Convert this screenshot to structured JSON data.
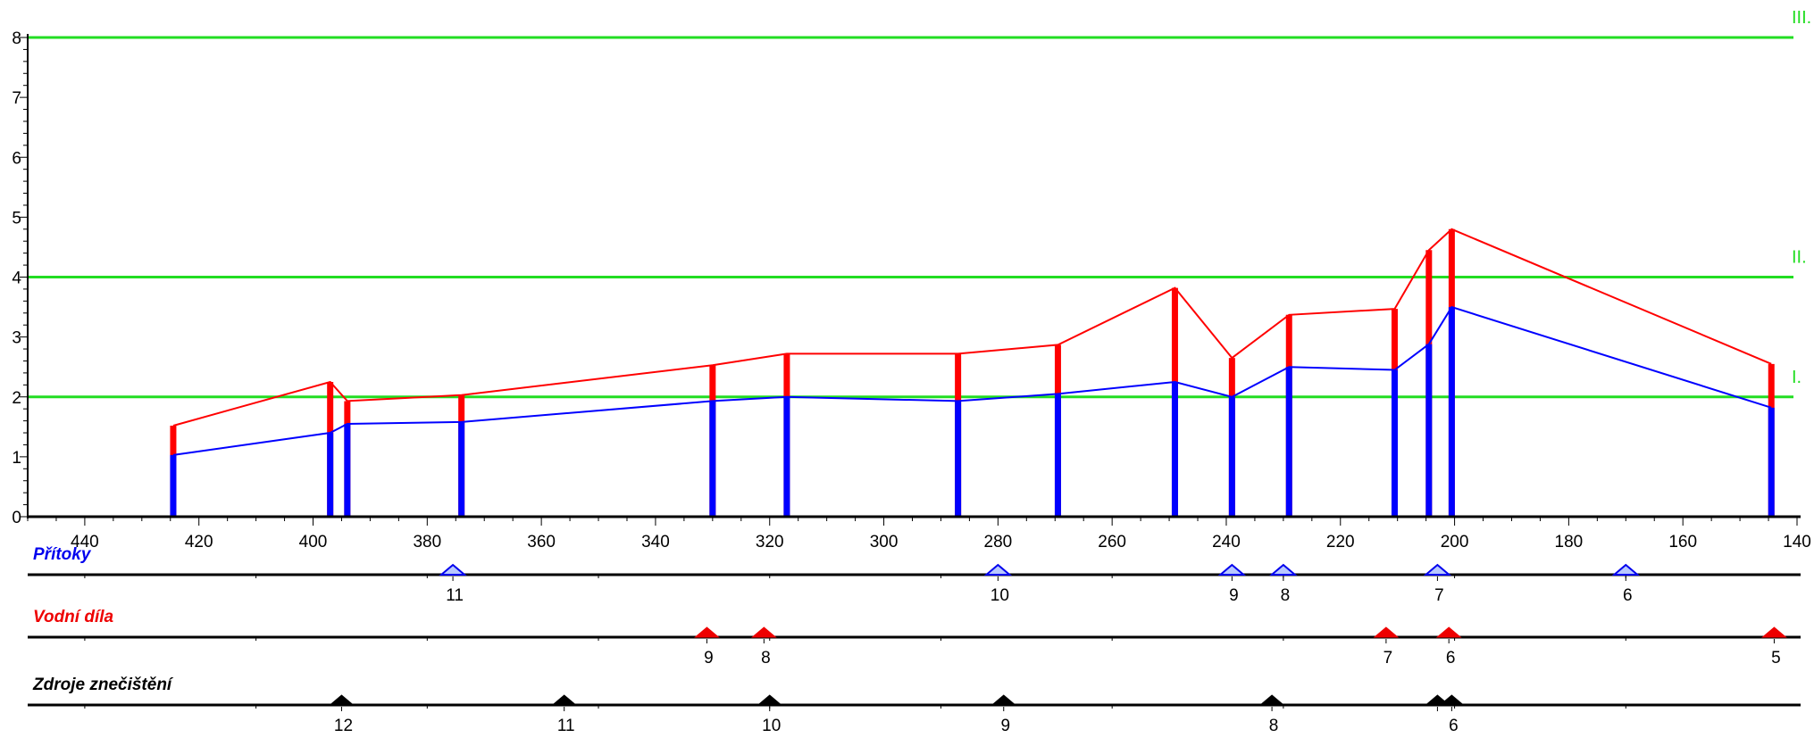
{
  "chart_data": {
    "type": "line",
    "x_ticks": [
      440,
      420,
      400,
      380,
      360,
      340,
      320,
      300,
      280,
      260,
      240,
      220,
      200,
      180,
      160,
      140
    ],
    "y_ticks": [
      0,
      1,
      2,
      3,
      4,
      5,
      6,
      7,
      8
    ],
    "xlim": [
      450,
      140
    ],
    "ylim": [
      0,
      8
    ],
    "grid": false,
    "thresholds": [
      {
        "label": "I.",
        "value": 2,
        "color": "#22dd22"
      },
      {
        "label": "II.",
        "value": 4,
        "color": "#22dd22"
      },
      {
        "label": "III.",
        "value": 8,
        "color": "#22dd22"
      }
    ],
    "series": [
      {
        "color": "#ff0000",
        "x": [
          424.5,
          397,
          394,
          374,
          330,
          317,
          287,
          269.5,
          249,
          239,
          229,
          210.5,
          204.5,
          200.5,
          144.5
        ],
        "y": [
          1.52,
          2.25,
          1.93,
          2.03,
          2.53,
          2.72,
          2.72,
          2.87,
          3.82,
          2.65,
          3.37,
          3.47,
          4.45,
          4.8,
          2.55
        ]
      },
      {
        "color": "#0000ff",
        "x": [
          424.5,
          397,
          394,
          374,
          330,
          317,
          287,
          269.5,
          249,
          239,
          229,
          210.5,
          204.5,
          200.5,
          144.5
        ],
        "y": [
          1.03,
          1.4,
          1.55,
          1.58,
          1.93,
          2.0,
          1.93,
          2.05,
          2.25,
          2.0,
          2.5,
          2.45,
          2.88,
          3.5,
          1.82
        ]
      }
    ],
    "lanes": [
      {
        "title": "Přítoky",
        "color": "#0000ee",
        "marker": "triangle-outline",
        "markers": [
          {
            "km": 375.5,
            "label": "11"
          },
          {
            "km": 280,
            "label": "10"
          },
          {
            "km": 239,
            "label": "9"
          },
          {
            "km": 230,
            "label": "8"
          },
          {
            "km": 203,
            "label": "7"
          },
          {
            "km": 170,
            "label": "6"
          }
        ]
      },
      {
        "title": "Vodní díla",
        "color": "#ee0000",
        "marker": "triangle",
        "markers": [
          {
            "km": 331,
            "label": "9"
          },
          {
            "km": 321,
            "label": "8"
          },
          {
            "km": 212,
            "label": "7"
          },
          {
            "km": 201,
            "label": "6"
          },
          {
            "km": 144,
            "label": "5"
          }
        ]
      },
      {
        "title": "Zdroje znečištění",
        "color": "#000000",
        "marker": "triangle",
        "markers": [
          {
            "km": 395,
            "label": "12"
          },
          {
            "km": 356,
            "label": "11"
          },
          {
            "km": 320,
            "label": "10"
          },
          {
            "km": 279,
            "label": "9"
          },
          {
            "km": 232,
            "label": "8"
          },
          {
            "km": 203,
            "label": ""
          },
          {
            "km": 200.5,
            "label": "6"
          }
        ]
      }
    ]
  }
}
